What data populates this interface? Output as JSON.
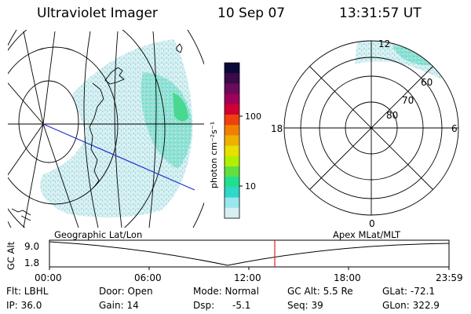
{
  "header": {
    "instrument": "Ultraviolet Imager",
    "date": "10 Sep 07",
    "time": "13:31:57 UT"
  },
  "colorbar": {
    "unit_label": "photon cm⁻²s⁻¹",
    "tick_100": "100",
    "tick_10": "10",
    "colors": [
      "#0a0a3a",
      "#3a0a4a",
      "#6a0a5a",
      "#a0005a",
      "#d00030",
      "#f04010",
      "#f08000",
      "#f0b000",
      "#e8e000",
      "#b0f000",
      "#60e040",
      "#20e090",
      "#30d8c8",
      "#9ae6ec",
      "#d8eef0"
    ]
  },
  "polar_plot": {
    "mlt_labels": {
      "noon": "12",
      "dusk": "18",
      "dawn": "6",
      "midnight": "0"
    },
    "mlat_labels": [
      "60",
      "70",
      "80"
    ]
  },
  "map_labels": {
    "left": "Geographic Lat/Lon",
    "right": "Apex MLat/MLT"
  },
  "timeline": {
    "ylabel": "GC Alt",
    "y_ticks": [
      "9.0",
      "1.8"
    ],
    "x_ticks": [
      "00:00",
      "06:00",
      "12:00",
      "18:00",
      "23:59"
    ],
    "current_time_frac": 0.5639
  },
  "status": {
    "flt": "Flt: LBHL",
    "ip": "IP: 36.0",
    "door": "Door: Open",
    "gain": "Gain: 14",
    "mode": "Mode: Normal",
    "dsp": "Dsp:",
    "dsp_value": "-5.1",
    "gc_alt": "GC Alt: 5.5 Re",
    "seq": "Seq: 39",
    "glat": "GLat: -72.1",
    "glon": "GLon: 322.9"
  }
}
